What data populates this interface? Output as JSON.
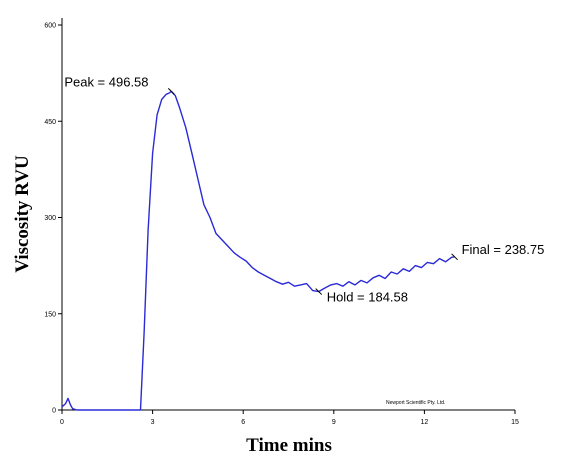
{
  "chart_data": {
    "type": "line",
    "title": "",
    "xlabel": "Time mins",
    "ylabel": "Viscosity RVU",
    "xlim": [
      0,
      15
    ],
    "ylim": [
      0,
      600
    ],
    "x_ticks": [
      0,
      3,
      6,
      9,
      12,
      15
    ],
    "x_tick_labels": [
      "0",
      "3",
      "6",
      "9",
      "12",
      "15"
    ],
    "y_ticks": [
      0,
      150,
      300,
      450,
      600
    ],
    "y_tick_labels": [
      "0",
      "150",
      "300",
      "450",
      "600"
    ],
    "grid": false,
    "legend": "none",
    "series": [
      {
        "color": "#2a2ad8",
        "x": [
          0,
          0.12,
          0.2,
          0.28,
          0.35,
          0.5,
          1.0,
          2.0,
          2.6,
          2.72,
          2.85,
          3.0,
          3.15,
          3.3,
          3.45,
          3.55,
          3.62,
          3.75,
          3.9,
          4.1,
          4.3,
          4.5,
          4.7,
          4.9,
          5.1,
          5.3,
          5.5,
          5.7,
          5.9,
          6.1,
          6.3,
          6.5,
          6.7,
          6.9,
          7.1,
          7.3,
          7.5,
          7.7,
          7.9,
          8.1,
          8.3,
          8.5,
          8.7,
          8.9,
          9.1,
          9.3,
          9.5,
          9.7,
          9.9,
          10.1,
          10.3,
          10.5,
          10.7,
          10.9,
          11.1,
          11.3,
          11.5,
          11.7,
          11.9,
          12.1,
          12.3,
          12.5,
          12.7,
          12.9,
          13.0
        ],
        "y": [
          5,
          10,
          18,
          8,
          2,
          0,
          0,
          0,
          0,
          120,
          280,
          400,
          460,
          484,
          492,
          494,
          496.58,
          490,
          470,
          440,
          400,
          360,
          320,
          300,
          275,
          265,
          255,
          245,
          238,
          232,
          222,
          215,
          210,
          205,
          200,
          196,
          199,
          193,
          195,
          197,
          186,
          184.58,
          190,
          195,
          197,
          193,
          200,
          195,
          202,
          198,
          206,
          210,
          205,
          215,
          212,
          220,
          216,
          225,
          222,
          230,
          228,
          236,
          231,
          238,
          238.75
        ]
      }
    ],
    "annotations": [
      {
        "text": "Peak = 496.58",
        "x": 3.62,
        "y": 496.58
      },
      {
        "text": "Hold = 184.58",
        "x": 8.5,
        "y": 184.58
      },
      {
        "text": "Final = 238.75",
        "x": 13.0,
        "y": 238.75
      }
    ],
    "watermark": "Newport Scientific Pty. Ltd."
  }
}
